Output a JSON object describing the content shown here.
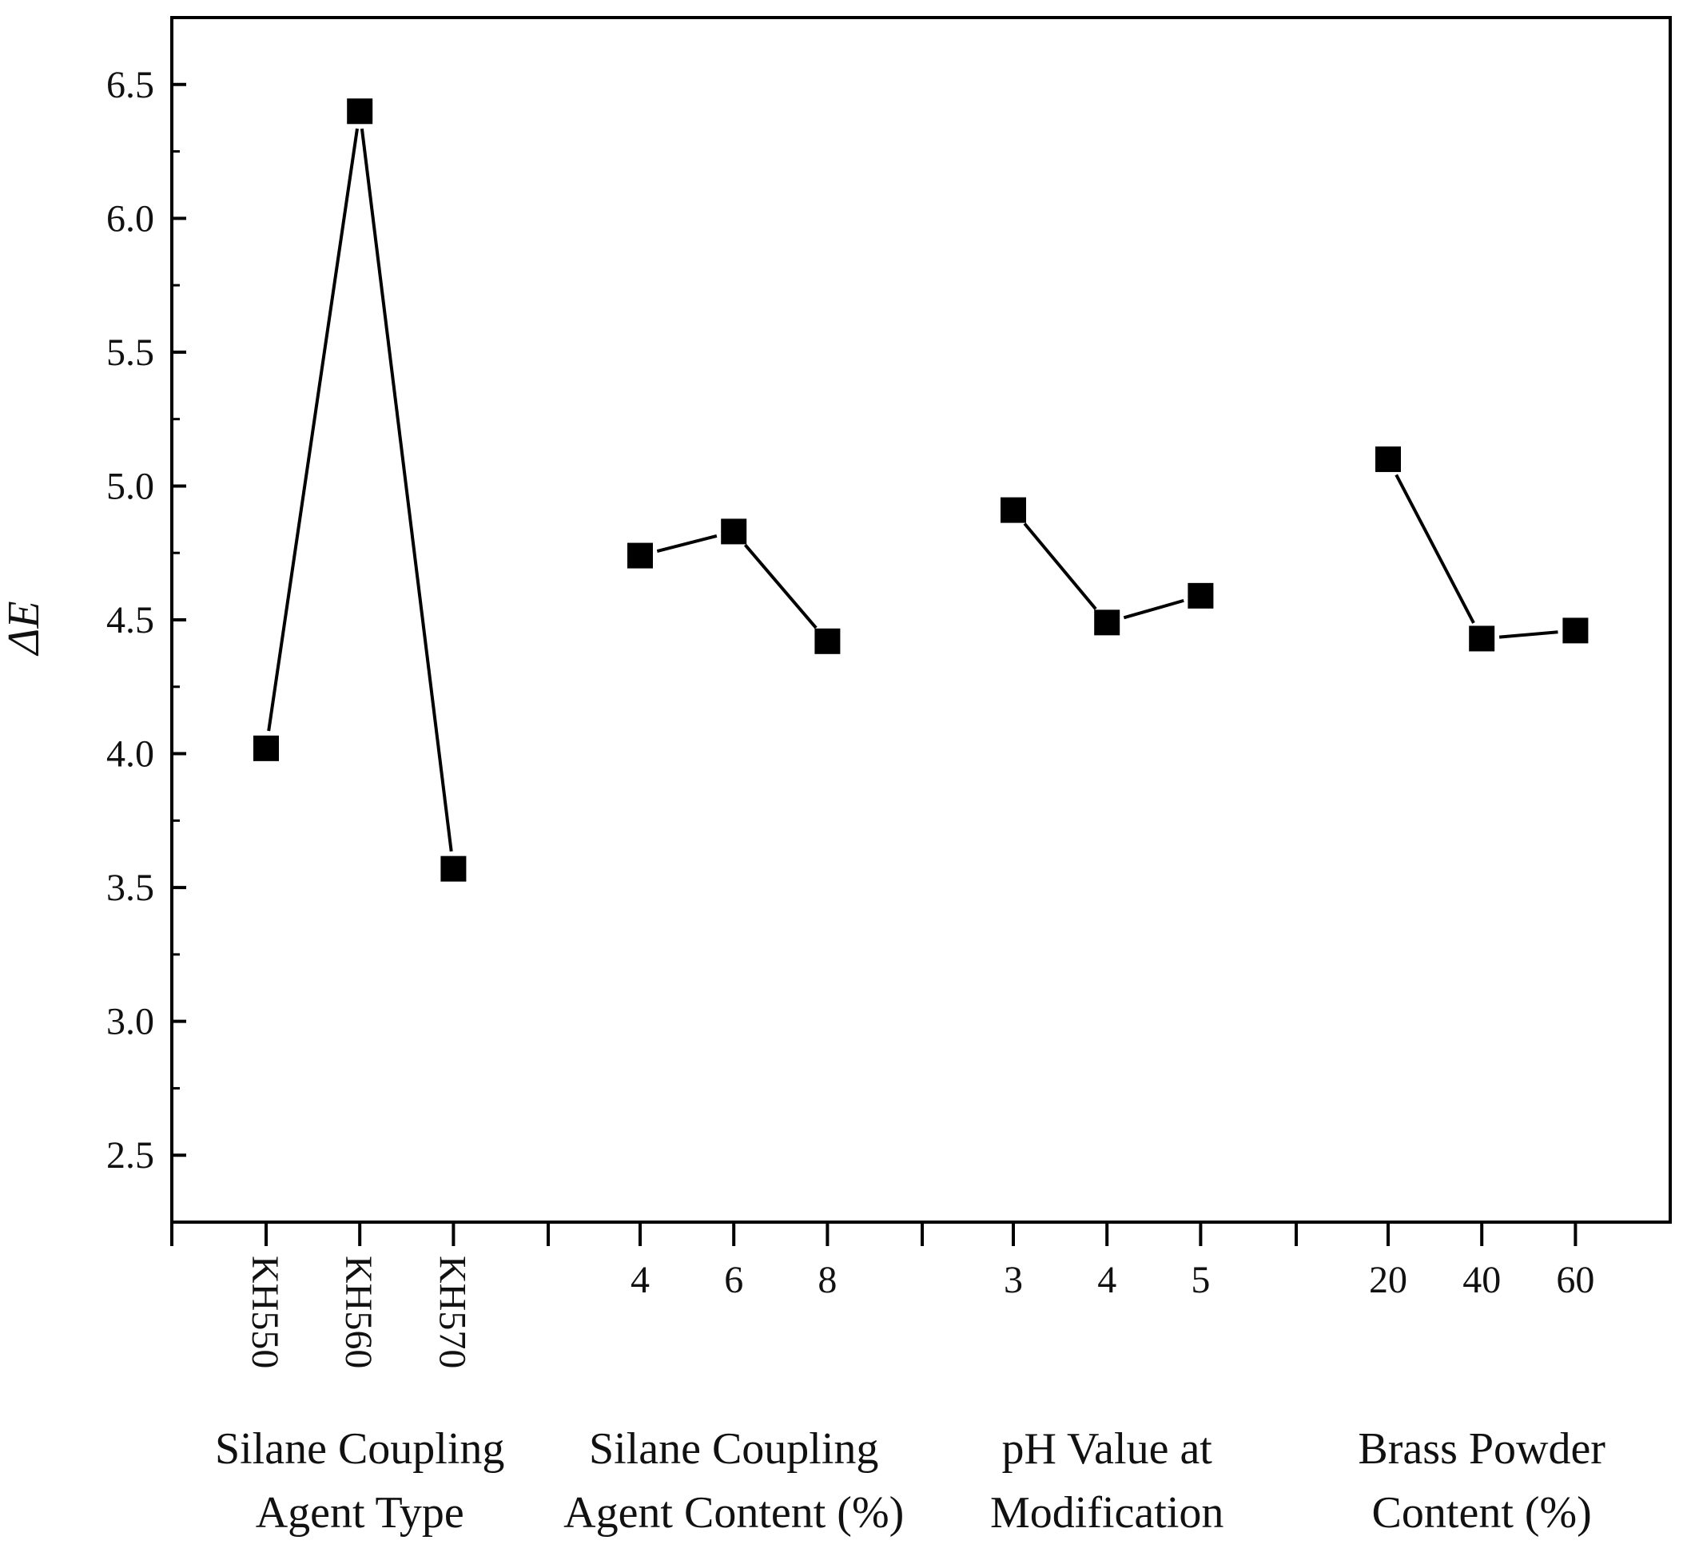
{
  "chart_data": {
    "type": "line",
    "title": "",
    "ylabel": "ΔE",
    "ylim": [
      2.25,
      6.75
    ],
    "yticks": [
      2.5,
      3.0,
      3.5,
      4.0,
      4.5,
      5.0,
      5.5,
      6.0,
      6.5
    ],
    "ytick_labels": [
      "2.5",
      "3.0",
      "3.5",
      "4.0",
      "4.5",
      "5.0",
      "5.5",
      "6.0",
      "6.5"
    ],
    "grid": false,
    "groups": [
      {
        "name": "Silane Coupling Agent Type",
        "label_lines": [
          "Silane Coupling",
          "Agent Type"
        ],
        "categories": [
          "KH550",
          "KH560",
          "KH570"
        ],
        "values": [
          4.02,
          6.4,
          3.57
        ],
        "rotated_labels": true
      },
      {
        "name": "Silane Coupling Agent Content (%)",
        "label_lines": [
          "Silane Coupling",
          "Agent Content (%)"
        ],
        "categories": [
          "4",
          "6",
          "8"
        ],
        "values": [
          4.74,
          4.83,
          4.42
        ],
        "rotated_labels": false
      },
      {
        "name": "pH Value at Modification",
        "label_lines": [
          "pH Value at",
          "Modification"
        ],
        "categories": [
          "3",
          "4",
          "5"
        ],
        "values": [
          4.91,
          4.49,
          4.59
        ],
        "rotated_labels": false
      },
      {
        "name": "Brass Powder Content (%)",
        "label_lines": [
          "Brass Powder",
          "Content (%)"
        ],
        "categories": [
          "20",
          "40",
          "60"
        ],
        "values": [
          5.1,
          4.43,
          4.46
        ],
        "rotated_labels": false
      }
    ],
    "marker": "square",
    "color": "#000000"
  }
}
